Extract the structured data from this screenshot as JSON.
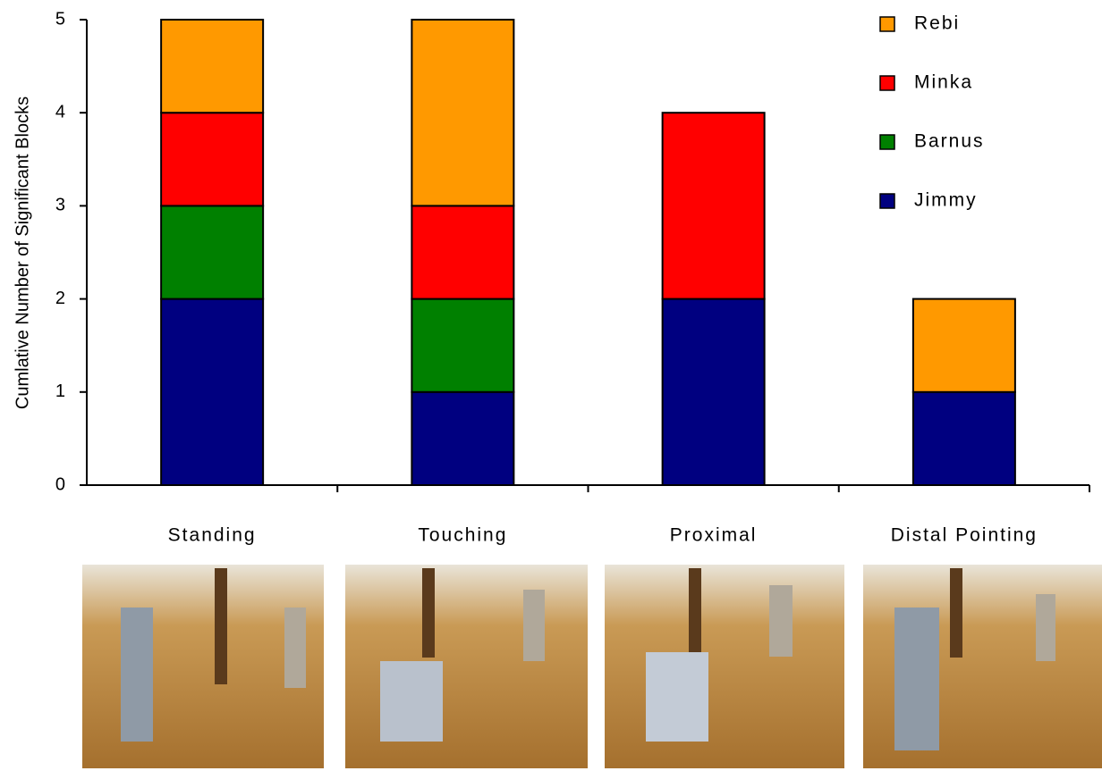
{
  "chart_data": {
    "type": "stacked-bar",
    "y_label": "Cumlative Number of Significant Blocks",
    "categories": [
      "Standing",
      "Touching",
      "Proximal",
      "Distal Pointing"
    ],
    "series": [
      {
        "name": "Jimmy",
        "color": "#000080",
        "values": [
          2,
          1,
          2,
          1
        ]
      },
      {
        "name": "Barnus",
        "color": "#008000",
        "values": [
          1,
          1,
          0,
          0
        ]
      },
      {
        "name": "Minka",
        "color": "#ff0000",
        "values": [
          1,
          1,
          2,
          0
        ]
      },
      {
        "name": "Rebi",
        "color": "#ff9900",
        "values": [
          1,
          2,
          0,
          1
        ]
      }
    ],
    "ylim": [
      0,
      5
    ],
    "yticks": [
      0,
      1,
      2,
      3,
      4,
      5
    ],
    "legend": "top-right"
  }
}
